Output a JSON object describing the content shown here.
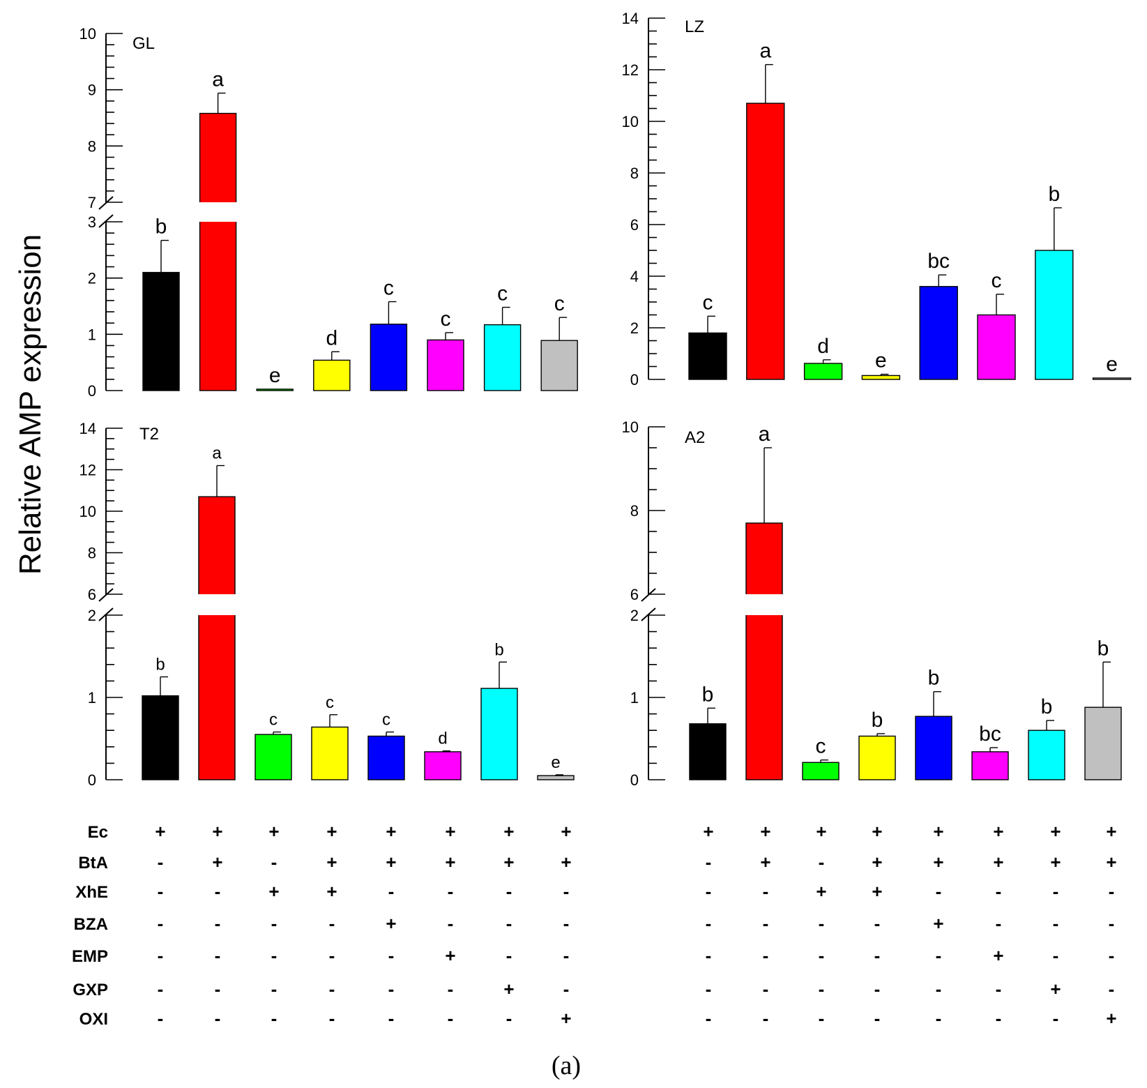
{
  "figure": {
    "y_axis_title": "Relative AMP expression",
    "caption": "(a)"
  },
  "chart_data": [
    {
      "type": "bar",
      "title": "GL",
      "ylabel": "Relative AMP expression",
      "axis_break": {
        "lower_max": 3,
        "upper_min": 7
      },
      "ylim_lower": [
        0,
        3
      ],
      "ylim_upper": [
        7,
        10
      ],
      "yticks": [
        0,
        1,
        2,
        3,
        7,
        8,
        9,
        10
      ],
      "bars": [
        {
          "group": "Ec",
          "value": 2.1,
          "error": 0.57,
          "letter": "b",
          "color": "#000000"
        },
        {
          "group": "Ec+BtA",
          "value": 8.58,
          "error": 0.36,
          "letter": "a",
          "color": "#ff0000"
        },
        {
          "group": "Ec+XhE",
          "value": 0.02,
          "error": 0.0,
          "letter": "e",
          "color": "#00ff00"
        },
        {
          "group": "Ec+BtA+XhE",
          "value": 0.54,
          "error": 0.15,
          "letter": "d",
          "color": "#ffff00"
        },
        {
          "group": "Ec+BtA+BZA",
          "value": 1.18,
          "error": 0.4,
          "letter": "c",
          "color": "#0000ff"
        },
        {
          "group": "Ec+BtA+EMP",
          "value": 0.9,
          "error": 0.13,
          "letter": "c",
          "color": "#ff00ff"
        },
        {
          "group": "Ec+BtA+GXP",
          "value": 1.17,
          "error": 0.31,
          "letter": "c",
          "color": "#00ffff"
        },
        {
          "group": "Ec+BtA+OXI",
          "value": 0.89,
          "error": 0.41,
          "letter": "c",
          "color": "#c0c0c0"
        }
      ]
    },
    {
      "type": "bar",
      "title": "LZ",
      "ylabel": "Relative AMP expression",
      "ylim": [
        0,
        14
      ],
      "yticks": [
        0,
        2,
        4,
        6,
        8,
        10,
        12,
        14
      ],
      "bars": [
        {
          "group": "Ec",
          "value": 1.8,
          "error": 0.65,
          "letter": "c",
          "color": "#000000"
        },
        {
          "group": "Ec+BtA",
          "value": 10.7,
          "error": 1.5,
          "letter": "a",
          "color": "#ff0000"
        },
        {
          "group": "Ec+XhE",
          "value": 0.62,
          "error": 0.14,
          "letter": "d",
          "color": "#00ff00"
        },
        {
          "group": "Ec+BtA+XhE",
          "value": 0.15,
          "error": 0.05,
          "letter": "e",
          "color": "#ffff00"
        },
        {
          "group": "Ec+BtA+BZA",
          "value": 3.6,
          "error": 0.45,
          "letter": "bc",
          "color": "#0000ff"
        },
        {
          "group": "Ec+BtA+EMP",
          "value": 2.5,
          "error": 0.8,
          "letter": "c",
          "color": "#ff00ff"
        },
        {
          "group": "Ec+BtA+GXP",
          "value": 5.0,
          "error": 1.65,
          "letter": "b",
          "color": "#00ffff"
        },
        {
          "group": "Ec+BtA+OXI",
          "value": 0.03,
          "error": 0.0,
          "letter": "e",
          "color": "#c0c0c0"
        }
      ]
    },
    {
      "type": "bar",
      "title": "T2",
      "ylabel": "Relative AMP expression",
      "axis_break": {
        "lower_max": 2,
        "upper_min": 6
      },
      "ylim_lower": [
        0,
        2
      ],
      "ylim_upper": [
        6,
        14
      ],
      "yticks": [
        0,
        1,
        2,
        6,
        8,
        10,
        12,
        14
      ],
      "bars": [
        {
          "group": "Ec",
          "value": 1.02,
          "error": 0.23,
          "letter": "b",
          "color": "#000000"
        },
        {
          "group": "Ec+BtA",
          "value": 10.7,
          "error": 1.5,
          "letter": "a",
          "color": "#ff0000"
        },
        {
          "group": "Ec+XhE",
          "value": 0.55,
          "error": 0.03,
          "letter": "c",
          "color": "#00ff00"
        },
        {
          "group": "Ec+BtA+XhE",
          "value": 0.64,
          "error": 0.15,
          "letter": "c",
          "color": "#ffff00"
        },
        {
          "group": "Ec+BtA+BZA",
          "value": 0.53,
          "error": 0.05,
          "letter": "c",
          "color": "#0000ff"
        },
        {
          "group": "Ec+BtA+EMP",
          "value": 0.34,
          "error": 0.01,
          "letter": "d",
          "color": "#ff00ff"
        },
        {
          "group": "Ec+BtA+GXP",
          "value": 1.11,
          "error": 0.32,
          "letter": "b",
          "color": "#00ffff"
        },
        {
          "group": "Ec+BtA+OXI",
          "value": 0.05,
          "error": 0.01,
          "letter": "e",
          "color": "#c0c0c0"
        }
      ]
    },
    {
      "type": "bar",
      "title": "A2",
      "ylabel": "Relative AMP expression",
      "axis_break": {
        "lower_max": 2,
        "upper_min": 6
      },
      "ylim_lower": [
        0,
        2
      ],
      "ylim_upper": [
        6,
        10
      ],
      "yticks": [
        0,
        1,
        2,
        6,
        8,
        10
      ],
      "bars": [
        {
          "group": "Ec",
          "value": 0.68,
          "error": 0.19,
          "letter": "b",
          "color": "#000000"
        },
        {
          "group": "Ec+BtA",
          "value": 7.7,
          "error": 1.8,
          "letter": "a",
          "color": "#ff0000"
        },
        {
          "group": "Ec+XhE",
          "value": 0.21,
          "error": 0.03,
          "letter": "c",
          "color": "#00ff00"
        },
        {
          "group": "Ec+BtA+XhE",
          "value": 0.53,
          "error": 0.03,
          "letter": "b",
          "color": "#ffff00"
        },
        {
          "group": "Ec+BtA+BZA",
          "value": 0.77,
          "error": 0.3,
          "letter": "b",
          "color": "#0000ff"
        },
        {
          "group": "Ec+BtA+EMP",
          "value": 0.34,
          "error": 0.05,
          "letter": "bc",
          "color": "#ff00ff"
        },
        {
          "group": "Ec+BtA+GXP",
          "value": 0.6,
          "error": 0.12,
          "letter": "b",
          "color": "#00ffff"
        },
        {
          "group": "Ec+BtA+OXI",
          "value": 0.88,
          "error": 0.55,
          "letter": "b",
          "color": "#c0c0c0"
        }
      ]
    }
  ],
  "treatment_table": {
    "rows": [
      {
        "label": "Ec",
        "signs": [
          "+",
          "+",
          "+",
          "+",
          "+",
          "+",
          "+",
          "+"
        ]
      },
      {
        "label": "BtA",
        "signs": [
          "-",
          "+",
          "-",
          "+",
          "+",
          "+",
          "+",
          "+"
        ]
      },
      {
        "label": "XhE",
        "signs": [
          "-",
          "-",
          "+",
          "+",
          "-",
          "-",
          "-",
          "-"
        ]
      },
      {
        "label": "BZA",
        "signs": [
          "-",
          "-",
          "-",
          "-",
          "+",
          "-",
          "-",
          "-"
        ]
      },
      {
        "label": "EMP",
        "signs": [
          "-",
          "-",
          "-",
          "-",
          "-",
          "+",
          "-",
          "-"
        ]
      },
      {
        "label": "GXP",
        "signs": [
          "-",
          "-",
          "-",
          "-",
          "-",
          "-",
          "+",
          "-"
        ]
      },
      {
        "label": "OXI",
        "signs": [
          "-",
          "-",
          "-",
          "-",
          "-",
          "-",
          "-",
          "+"
        ]
      }
    ]
  }
}
